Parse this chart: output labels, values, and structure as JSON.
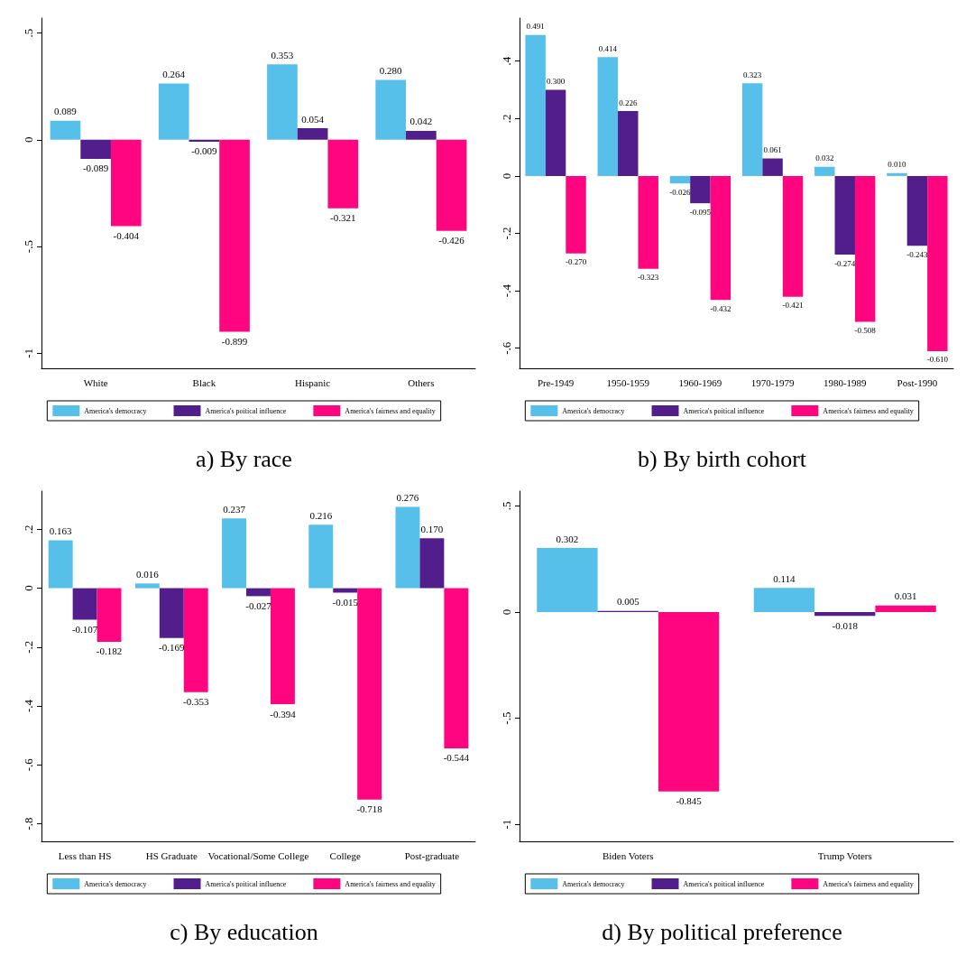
{
  "chart_data": [
    {
      "type": "bar",
      "title": "a) By race",
      "categories": [
        "White",
        "Black",
        "Hispanic",
        "Others"
      ],
      "series": [
        {
          "name": "America's democracy",
          "color": "#56c0ea",
          "values": [
            0.089,
            0.264,
            0.353,
            0.28
          ],
          "value_labels": [
            "0.089",
            "0.264",
            "0.353",
            "0.280"
          ]
        },
        {
          "name": "America's poitical influence",
          "color": "#521e8c",
          "values": [
            -0.089,
            -0.009,
            0.054,
            0.042
          ],
          "value_labels": [
            "-0.089",
            "-0.009",
            "0.054",
            "0.042"
          ]
        },
        {
          "name": "America's fairness and equality",
          "color": "#ff0580",
          "values": [
            -0.404,
            -0.899,
            -0.321,
            -0.426
          ],
          "value_labels": [
            "-0.404",
            "-0.899",
            "-0.321",
            "-0.426"
          ]
        }
      ],
      "ylim": [
        -1.07,
        0.57
      ],
      "yticks": [
        {
          "value": -1,
          "label": "-1"
        },
        {
          "value": -0.5,
          "label": "-.5"
        },
        {
          "value": 0,
          "label": "0"
        },
        {
          "value": 0.5,
          "label": ".5"
        }
      ],
      "grid": false,
      "legend": "bottom"
    },
    {
      "type": "bar",
      "title": "b) By birth cohort",
      "categories": [
        "Pre-1949",
        "1950-1959",
        "1960-1969",
        "1970-1979",
        "1980-1989",
        "Post-1990"
      ],
      "series": [
        {
          "name": "America's democracy",
          "color": "#56c0ea",
          "values": [
            0.491,
            0.414,
            -0.026,
            0.323,
            0.032,
            0.01
          ],
          "value_labels": [
            "0.491",
            "0.414",
            "-0.026",
            "0.323",
            "0.032",
            "0.010"
          ]
        },
        {
          "name": "America's poitical influence",
          "color": "#521e8c",
          "values": [
            0.3,
            0.226,
            -0.095,
            0.061,
            -0.274,
            -0.243
          ],
          "value_labels": [
            "0.300",
            "0.226",
            "-0.095",
            "0.061",
            "-0.274",
            "-0.243"
          ]
        },
        {
          "name": "America's fairness and equality",
          "color": "#ff0580",
          "values": [
            -0.27,
            -0.323,
            -0.432,
            -0.421,
            -0.508,
            -0.61
          ],
          "value_labels": [
            "-0.270",
            "-0.323",
            "-0.432",
            "-0.421",
            "-0.508",
            "-0.610"
          ]
        }
      ],
      "ylim": [
        -0.67,
        0.55
      ],
      "yticks": [
        {
          "value": -0.6,
          "label": "-.6"
        },
        {
          "value": -0.4,
          "label": "-.4"
        },
        {
          "value": -0.2,
          "label": "-.2"
        },
        {
          "value": 0,
          "label": "0"
        },
        {
          "value": 0.2,
          "label": ".2"
        },
        {
          "value": 0.4,
          "label": ".4"
        }
      ],
      "grid": false,
      "legend": "bottom"
    },
    {
      "type": "bar",
      "title": "c) By education",
      "categories": [
        "Less than HS",
        "HS Graduate",
        "Vocational/Some College",
        "College",
        "Post-graduate"
      ],
      "series": [
        {
          "name": "America's democracy",
          "color": "#56c0ea",
          "values": [
            0.163,
            0.016,
            0.237,
            0.216,
            0.276
          ],
          "value_labels": [
            "0.163",
            "0.016",
            "0.237",
            "0.216",
            "0.276"
          ]
        },
        {
          "name": "America's poitical influence",
          "color": "#521e8c",
          "values": [
            -0.107,
            -0.169,
            -0.027,
            -0.015,
            0.17
          ],
          "value_labels": [
            "-0.107",
            "-0.169",
            "-0.027",
            "-0.015",
            "0.170"
          ]
        },
        {
          "name": "America's fairness and equality",
          "color": "#ff0580",
          "values": [
            -0.182,
            -0.353,
            -0.394,
            -0.718,
            -0.544
          ],
          "value_labels": [
            "-0.182",
            "-0.353",
            "-0.394",
            "-0.718",
            "-0.544"
          ]
        }
      ],
      "ylim": [
        -0.86,
        0.33
      ],
      "yticks": [
        {
          "value": -0.8,
          "label": "-.8"
        },
        {
          "value": -0.6,
          "label": "-.6"
        },
        {
          "value": -0.4,
          "label": "-.4"
        },
        {
          "value": -0.2,
          "label": "-.2"
        },
        {
          "value": 0,
          "label": "0"
        },
        {
          "value": 0.2,
          "label": ".2"
        }
      ],
      "grid": false,
      "legend": "bottom"
    },
    {
      "type": "bar",
      "title": "d) By political preference",
      "categories": [
        "Biden Voters",
        "Trump Voters"
      ],
      "series": [
        {
          "name": "America's democracy",
          "color": "#56c0ea",
          "values": [
            0.302,
            0.114
          ],
          "value_labels": [
            "0.302",
            "0.114"
          ]
        },
        {
          "name": "America's poitical influence",
          "color": "#521e8c",
          "values": [
            0.005,
            -0.018
          ],
          "value_labels": [
            "0.005",
            "-0.018"
          ]
        },
        {
          "name": "America's fairness and equality",
          "color": "#ff0580",
          "values": [
            -0.845,
            0.031
          ],
          "value_labels": [
            "-0.845",
            "0.031"
          ]
        }
      ],
      "ylim": [
        -1.08,
        0.57
      ],
      "yticks": [
        {
          "value": -1,
          "label": "-1"
        },
        {
          "value": -0.5,
          "label": "-.5"
        },
        {
          "value": 0,
          "label": "0"
        },
        {
          "value": 0.5,
          "label": ".5"
        }
      ],
      "grid": false,
      "legend": "bottom"
    }
  ]
}
